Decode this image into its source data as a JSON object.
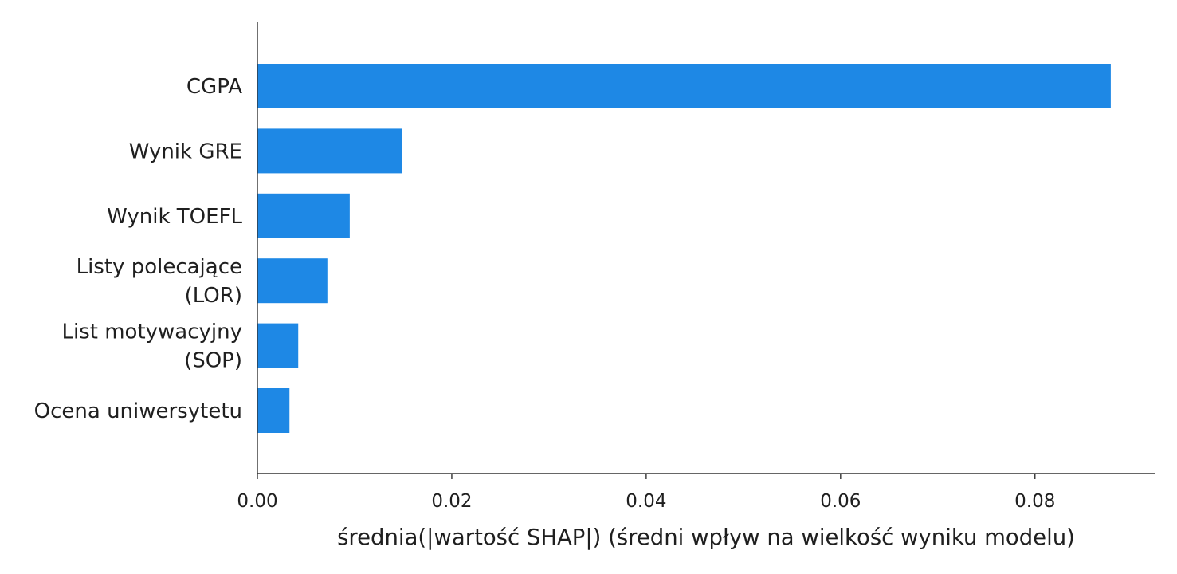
{
  "chart_data": {
    "type": "bar",
    "orientation": "horizontal",
    "categories": [
      [
        "CGPA"
      ],
      [
        "Wynik GRE"
      ],
      [
        "Wynik TOEFL"
      ],
      [
        "Listy polecające",
        "(LOR)"
      ],
      [
        "List motywacyjny",
        "(SOP)"
      ],
      [
        "Ocena uniwersytetu"
      ]
    ],
    "values": [
      0.0878,
      0.0149,
      0.0095,
      0.0072,
      0.0042,
      0.0033
    ],
    "xlabel": "średnia(|wartość SHAP|) (średni wpływ na wielkość wyniku modelu)",
    "ylabel": "",
    "title": "",
    "xticks": [
      0.0,
      0.02,
      0.04,
      0.06,
      0.08
    ],
    "xtick_labels": [
      "0.00",
      "0.02",
      "0.04",
      "0.06",
      "0.08"
    ],
    "xlim": [
      0,
      0.0924
    ],
    "bar_color": "#1E88E5",
    "axis_color": "#333333",
    "grid": false
  }
}
